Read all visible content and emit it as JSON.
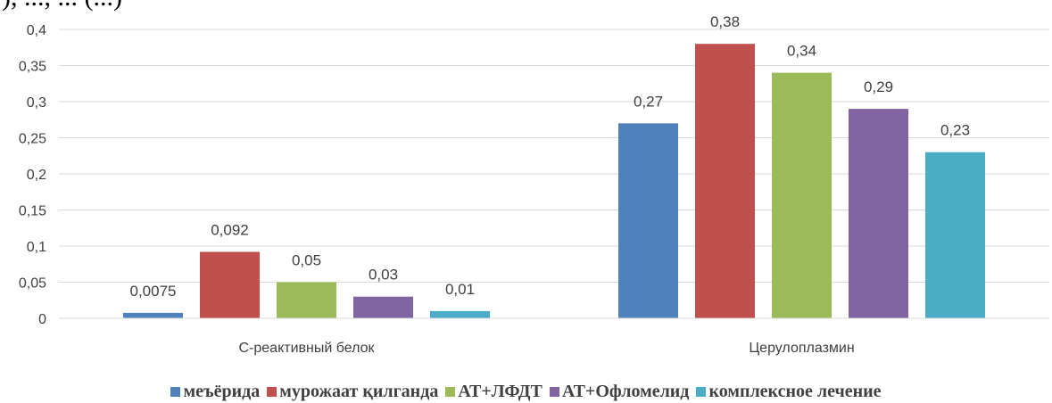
{
  "header_fragment": "), ..., ...                    (...)",
  "chart_data": {
    "type": "bar",
    "categories": [
      "С-реактивный белок",
      "Церулоплазмин"
    ],
    "series": [
      {
        "name": "меъёрида",
        "color": "#4F81BD",
        "values": [
          0.0075,
          0.27
        ],
        "labels": [
          "0,0075",
          "0,27"
        ]
      },
      {
        "name": "мурожаат қилганда",
        "color": "#C0504D",
        "values": [
          0.092,
          0.38
        ],
        "labels": [
          "0,092",
          "0,38"
        ]
      },
      {
        "name": "АТ+ЛФДТ",
        "color": "#9BBB59",
        "values": [
          0.05,
          0.34
        ],
        "labels": [
          "0,05",
          "0,34"
        ]
      },
      {
        "name": "АТ+Офломелид",
        "color": "#8064A2",
        "values": [
          0.03,
          0.29
        ],
        "labels": [
          "0,03",
          "0,29"
        ]
      },
      {
        "name": "комплексное лечение",
        "color": "#4BACC6",
        "values": [
          0.01,
          0.23
        ],
        "labels": [
          "0,01",
          "0,23"
        ]
      }
    ],
    "ylim": [
      0,
      0.4
    ],
    "yticks": [
      0,
      0.05,
      0.1,
      0.15,
      0.2,
      0.25,
      0.3,
      0.35,
      0.4
    ],
    "ytick_labels": [
      "0",
      "0,05",
      "0,1",
      "0,15",
      "0,2",
      "0,25",
      "0,3",
      "0,35",
      "0,4"
    ],
    "grid": true,
    "legend_position": "bottom",
    "title": "",
    "xlabel": "",
    "ylabel": ""
  }
}
